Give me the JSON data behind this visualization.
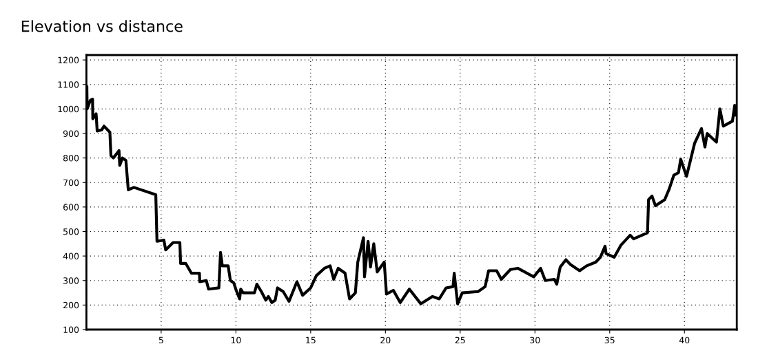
{
  "chart_data": {
    "type": "line",
    "title": "Elevation vs distance",
    "x": [
      0.03,
      0.05,
      0.26,
      0.41,
      0.43,
      0.65,
      0.72,
      1.03,
      1.18,
      1.57,
      1.64,
      1.8,
      2.18,
      2.23,
      2.41,
      2.64,
      2.8,
      3.18,
      4.64,
      4.72,
      5.18,
      5.3,
      5.8,
      6.25,
      6.3,
      6.64,
      7.02,
      7.56,
      7.58,
      8.02,
      8.17,
      8.86,
      8.97,
      9.09,
      9.48,
      9.63,
      9.86,
      10.02,
      10.25,
      10.32,
      10.48,
      11.24,
      11.4,
      11.7,
      12.0,
      12.17,
      12.4,
      12.63,
      12.78,
      13.16,
      13.55,
      14.08,
      14.46,
      15.0,
      15.38,
      15.92,
      16.3,
      16.54,
      16.84,
      17.3,
      17.6,
      17.99,
      18.15,
      18.53,
      18.6,
      18.84,
      19.0,
      19.22,
      19.45,
      19.92,
      20.07,
      20.53,
      20.99,
      21.6,
      22.37,
      23.14,
      23.6,
      24.06,
      24.52,
      24.6,
      24.83,
      25.14,
      26.2,
      26.67,
      26.9,
      27.44,
      27.75,
      28.36,
      28.85,
      29.92,
      30.38,
      30.69,
      31.3,
      31.46,
      31.69,
      32.07,
      32.38,
      32.99,
      33.46,
      34.07,
      34.38,
      34.69,
      34.76,
      35.3,
      35.76,
      36.37,
      36.6,
      37.53,
      37.6,
      37.83,
      38.06,
      38.68,
      38.99,
      39.29,
      39.6,
      39.75,
      40.14,
      40.68,
      41.14,
      41.37,
      41.52,
      42.14,
      42.37,
      42.6,
      43.21,
      43.36,
      43.44
    ],
    "series": [
      {
        "color": "#000000",
        "values": [
          1090,
          1000,
          1035,
          1040,
          960,
          980,
          910,
          915,
          930,
          905,
          810,
          800,
          830,
          770,
          800,
          790,
          670,
          680,
          650,
          460,
          465,
          425,
          455,
          455,
          370,
          370,
          330,
          330,
          295,
          300,
          265,
          270,
          415,
          360,
          360,
          300,
          290,
          260,
          225,
          265,
          250,
          250,
          285,
          255,
          220,
          235,
          210,
          220,
          270,
          255,
          215,
          295,
          240,
          270,
          320,
          350,
          360,
          305,
          350,
          330,
          225,
          250,
          375,
          475,
          315,
          460,
          355,
          450,
          335,
          375,
          245,
          260,
          210,
          265,
          205,
          235,
          225,
          270,
          275,
          330,
          205,
          250,
          255,
          275,
          340,
          340,
          305,
          345,
          350,
          315,
          350,
          300,
          305,
          285,
          355,
          385,
          365,
          340,
          360,
          375,
          395,
          440,
          410,
          395,
          445,
          485,
          470,
          495,
          630,
          645,
          605,
          630,
          675,
          730,
          740,
          795,
          725,
          860,
          920,
          845,
          900,
          865,
          1000,
          930,
          950,
          1015,
          975
        ]
      }
    ],
    "xlim": [
      0,
      43.5
    ],
    "ylim": [
      100,
      1220
    ],
    "xticks": [
      5,
      10,
      15,
      20,
      25,
      30,
      35,
      40
    ],
    "yticks": [
      100,
      200,
      300,
      400,
      500,
      600,
      700,
      800,
      900,
      1000,
      1100,
      1200
    ],
    "grid": true,
    "line_style": "solid",
    "marker": "none"
  }
}
